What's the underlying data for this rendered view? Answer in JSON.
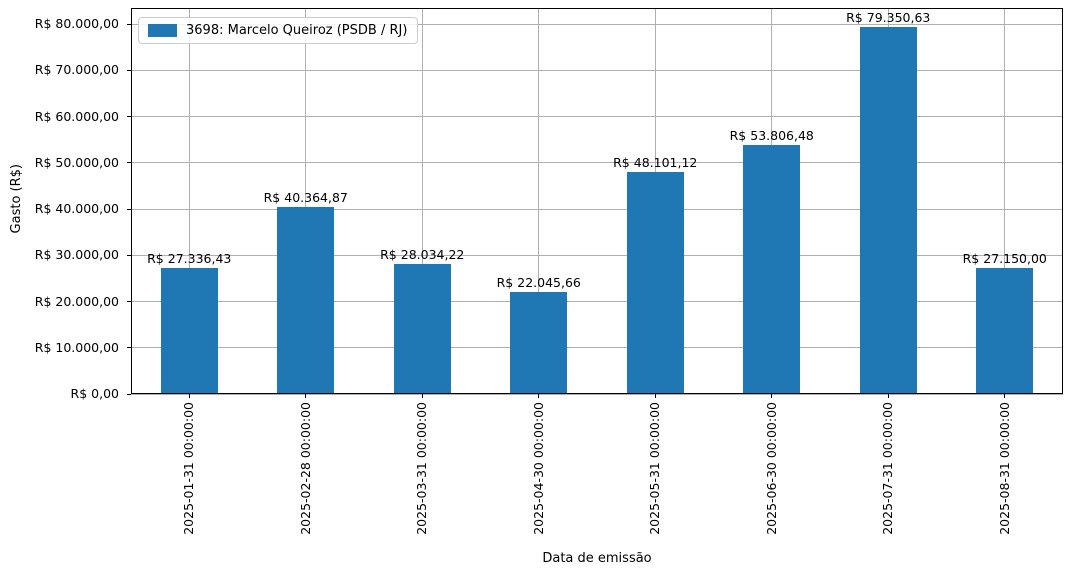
{
  "figure": {
    "background": "#ffffff"
  },
  "chart_data": {
    "type": "bar",
    "title": "",
    "xlabel": "Data de emissão",
    "ylabel": "Gasto (R$)",
    "legend": {
      "position": "upper-left",
      "entries": [
        {
          "label": "3698: Marcelo Queiroz (PSDB / RJ)",
          "color": "#1f77b4"
        }
      ]
    },
    "categories": [
      "2025-01-31 00:00:00",
      "2025-02-28 00:00:00",
      "2025-03-31 00:00:00",
      "2025-04-30 00:00:00",
      "2025-05-31 00:00:00",
      "2025-06-30 00:00:00",
      "2025-07-31 00:00:00",
      "2025-08-31 00:00:00"
    ],
    "series": [
      {
        "name": "3698: Marcelo Queiroz (PSDB / RJ)",
        "values": [
          27336.43,
          40364.87,
          28034.22,
          22045.66,
          48101.12,
          53806.48,
          79350.63,
          27150.0
        ]
      }
    ],
    "bar_value_labels": [
      "R$ 27.336,43",
      "R$ 40.364,87",
      "R$ 28.034,22",
      "R$ 22.045,66",
      "R$ 48.101,12",
      "R$ 53.806,48",
      "R$ 79.350,63",
      "R$ 27.150,00"
    ],
    "yticks": {
      "values": [
        0,
        10000,
        20000,
        30000,
        40000,
        50000,
        60000,
        70000,
        80000
      ],
      "labels": [
        "R$ 0,00",
        "R$ 10.000,00",
        "R$ 20.000,00",
        "R$ 30.000,00",
        "R$ 40.000,00",
        "R$ 50.000,00",
        "R$ 60.000,00",
        "R$ 70.000,00",
        "R$ 80.000,00"
      ]
    },
    "ylim": [
      0,
      83500
    ],
    "grid": true,
    "colors": {
      "bar": "#1f77b4",
      "grid": "#b0b0b0",
      "spine": "#000000",
      "text": "#000000",
      "legend_border": "#cccccc"
    }
  }
}
